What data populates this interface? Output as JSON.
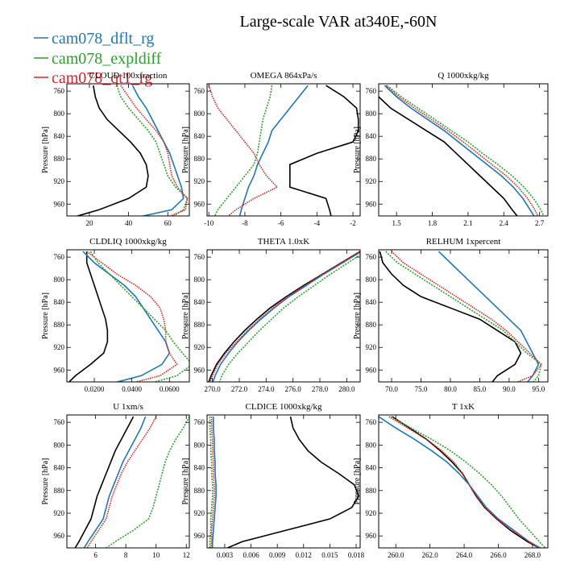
{
  "title": "Large-scale VAR at340E,-60N",
  "chart_data": [
    {
      "type": "line",
      "title": "CLOUD 100xfraction",
      "ylabel": "Pressure [hPa]",
      "y": [
        750,
        770,
        790,
        810,
        830,
        850,
        870,
        890,
        910,
        930,
        950,
        970,
        983
      ],
      "ylim": [
        747,
        981
      ],
      "yreverse": true,
      "yticks": [
        760,
        800,
        840,
        880,
        920,
        960
      ],
      "xlim": [
        8.5,
        71
      ],
      "xticks": [
        20,
        40,
        60
      ],
      "series": [
        {
          "color": "#000000",
          "values": [
            22,
            23,
            25,
            29,
            35,
            41,
            46,
            49,
            50,
            49,
            40,
            25,
            12
          ]
        },
        {
          "name": "cam078_dflt_rg",
          "color": "#1f77b4",
          "values": [
            42,
            45,
            49,
            52,
            55,
            58,
            61,
            63,
            65,
            67,
            68,
            62,
            45
          ]
        },
        {
          "name": "cam078_expldiff",
          "color": "#2ca02c",
          "values": [
            34,
            36,
            40,
            45,
            50,
            54,
            56,
            58,
            60,
            64,
            70,
            68,
            62
          ]
        },
        {
          "name": "cam078_qt1_rg",
          "color": "#d62728",
          "values": [
            36,
            40,
            44,
            49,
            54,
            58,
            60,
            61,
            62,
            65,
            70,
            69,
            60
          ]
        }
      ]
    },
    {
      "type": "line",
      "title": "OMEGA  864xPa/s",
      "ylabel": "Pressure [hPa]",
      "y": [
        750,
        770,
        790,
        810,
        830,
        850,
        870,
        890,
        910,
        930,
        950,
        970,
        983
      ],
      "ylim": [
        747,
        981
      ],
      "yreverse": true,
      "yticks": [
        760,
        800,
        840,
        880,
        920,
        960
      ],
      "xlim": [
        -10.1,
        -1.6
      ],
      "xticks": [
        -10,
        -8,
        -6,
        -4,
        -2
      ],
      "series": [
        {
          "color": "#000000",
          "values": [
            -3.5,
            -2.5,
            -1.8,
            -1.7,
            -1.7,
            -2.0,
            -4.0,
            -5.5,
            -5.5,
            -5.5,
            -3.5,
            -3.3,
            -3.2
          ]
        },
        {
          "color": "#1f77b4",
          "values": [
            -4.5,
            -5.0,
            -5.5,
            -6.0,
            -6.5,
            -6.7,
            -7.0,
            -7.3,
            -7.5,
            -7.8,
            -8.0,
            -8.2,
            -8.3
          ]
        },
        {
          "color": "#2ca02c",
          "values": [
            -6.5,
            -6.6,
            -6.8,
            -7.0,
            -7.1,
            -7.2,
            -7.3,
            -7.5,
            -8.0,
            -8.5,
            -9.0,
            -9.5,
            -9.7
          ]
        },
        {
          "color": "#d62728",
          "values": [
            -10.0,
            -9.8,
            -9.5,
            -9.0,
            -8.5,
            -8.0,
            -7.5,
            -7.2,
            -6.8,
            -6.2,
            -7.5,
            -8.5,
            -9.0
          ]
        }
      ]
    },
    {
      "type": "line",
      "title": "Q  1000xkg/kg",
      "ylabel": "Pressure [hPa]",
      "y": [
        750,
        770,
        790,
        810,
        830,
        850,
        870,
        890,
        910,
        930,
        950,
        970,
        983
      ],
      "ylim": [
        747,
        981
      ],
      "yreverse": true,
      "yticks": [
        760,
        800,
        840,
        880,
        920,
        960
      ],
      "xlim": [
        1.35,
        2.77
      ],
      "xticks": [
        1.5,
        1.8,
        2.1,
        2.4,
        2.7
      ],
      "series": [
        {
          "color": "#000000",
          "values": [
            1.3,
            1.35,
            1.45,
            1.6,
            1.75,
            1.9,
            2.0,
            2.1,
            2.2,
            2.3,
            2.4,
            2.47,
            2.52
          ]
        },
        {
          "color": "#1f77b4",
          "values": [
            1.4,
            1.5,
            1.62,
            1.76,
            1.9,
            2.02,
            2.14,
            2.26,
            2.38,
            2.48,
            2.56,
            2.62,
            2.66
          ]
        },
        {
          "color": "#2ca02c",
          "values": [
            1.42,
            1.54,
            1.68,
            1.82,
            1.96,
            2.1,
            2.22,
            2.35,
            2.47,
            2.57,
            2.65,
            2.71,
            2.74
          ]
        },
        {
          "color": "#d62728",
          "values": [
            1.41,
            1.52,
            1.65,
            1.79,
            1.93,
            2.06,
            2.18,
            2.3,
            2.42,
            2.52,
            2.6,
            2.66,
            2.69
          ]
        }
      ]
    },
    {
      "type": "line",
      "title": "CLDLIQ  1000xkg/kg",
      "ylabel": "Pressure [hPa]",
      "y": [
        750,
        770,
        790,
        810,
        830,
        850,
        870,
        890,
        910,
        930,
        950,
        970,
        983
      ],
      "ylim": [
        747,
        981
      ],
      "yreverse": true,
      "yticks": [
        760,
        800,
        840,
        880,
        920,
        960
      ],
      "xlim": [
        0.0054,
        0.0706
      ],
      "xticks": [
        {
          "value": 0.02,
          "label": "0.0200"
        },
        {
          "value": 0.04,
          "label": "0.0400"
        },
        {
          "value": 0.06,
          "label": "0.0600"
        }
      ],
      "series": [
        {
          "color": "#000000",
          "values": [
            0.016,
            0.016,
            0.018,
            0.02,
            0.022,
            0.024,
            0.026,
            0.027,
            0.027,
            0.025,
            0.018,
            0.01,
            0.006
          ]
        },
        {
          "color": "#1f77b4",
          "values": [
            0.014,
            0.02,
            0.028,
            0.036,
            0.042,
            0.046,
            0.05,
            0.054,
            0.058,
            0.06,
            0.056,
            0.045,
            0.03
          ]
        },
        {
          "color": "#2ca02c",
          "values": [
            0.018,
            0.022,
            0.028,
            0.034,
            0.04,
            0.046,
            0.052,
            0.058,
            0.062,
            0.067,
            0.072,
            0.064,
            0.05
          ]
        },
        {
          "color": "#d62728",
          "values": [
            0.016,
            0.024,
            0.032,
            0.042,
            0.05,
            0.055,
            0.057,
            0.058,
            0.058,
            0.06,
            0.064,
            0.055,
            0.04
          ]
        }
      ]
    },
    {
      "type": "line",
      "title": "THETA  1.0xK",
      "ylabel": "Pressure [hPa]",
      "y": [
        750,
        770,
        790,
        810,
        830,
        850,
        870,
        890,
        910,
        930,
        950,
        970,
        983
      ],
      "ylim": [
        747,
        981
      ],
      "yreverse": true,
      "yticks": [
        760,
        800,
        840,
        880,
        920,
        960
      ],
      "xlim": [
        269.6,
        281.0
      ],
      "xticks": [
        {
          "value": 270,
          "label": "270.0"
        },
        {
          "value": 272,
          "label": "272.0"
        },
        {
          "value": 274,
          "label": "274.0"
        },
        {
          "value": 276,
          "label": "276.0"
        },
        {
          "value": 278,
          "label": "278.0"
        },
        {
          "value": 280,
          "label": "280.0"
        }
      ],
      "series": [
        {
          "color": "#000000",
          "values": [
            281.0,
            279.6,
            278.2,
            276.8,
            275.5,
            274.3,
            273.3,
            272.4,
            271.6,
            270.9,
            270.3,
            269.9,
            269.7
          ]
        },
        {
          "color": "#1f77b4",
          "values": [
            281.1,
            279.7,
            278.3,
            277.0,
            275.7,
            274.6,
            273.6,
            272.7,
            271.9,
            271.2,
            270.6,
            270.2,
            270.0
          ]
        },
        {
          "color": "#2ca02c",
          "values": [
            281.4,
            280.1,
            278.8,
            277.6,
            276.4,
            275.3,
            274.4,
            273.5,
            272.7,
            271.9,
            271.2,
            270.7,
            270.5
          ]
        },
        {
          "color": "#d62728",
          "values": [
            281.0,
            279.6,
            278.2,
            276.9,
            275.6,
            274.5,
            273.5,
            272.6,
            271.8,
            271.0,
            270.4,
            270.0,
            269.8
          ]
        }
      ]
    },
    {
      "type": "line",
      "title": "RELHUM  1xpercent",
      "ylabel": "Pressure [hPa]",
      "y": [
        750,
        770,
        790,
        810,
        830,
        850,
        870,
        890,
        910,
        930,
        950,
        970,
        983
      ],
      "ylim": [
        747,
        981
      ],
      "yreverse": true,
      "yticks": [
        760,
        800,
        840,
        880,
        920,
        960
      ],
      "xlim": [
        67.8,
        96.6
      ],
      "xticks": [
        {
          "value": 70,
          "label": "70.0"
        },
        {
          "value": 75,
          "label": "75.0"
        },
        {
          "value": 80,
          "label": "80.0"
        },
        {
          "value": 85,
          "label": "85.0"
        },
        {
          "value": 90,
          "label": "90.0"
        },
        {
          "value": 95,
          "label": "95.0"
        }
      ],
      "series": [
        {
          "color": "#000000",
          "values": [
            68,
            68.5,
            70,
            72,
            75,
            80,
            85,
            88,
            91,
            92,
            91,
            88,
            87
          ]
        },
        {
          "color": "#1f77b4",
          "values": [
            78,
            80,
            82,
            84,
            86,
            88,
            90,
            92,
            93,
            94,
            95,
            94,
            93
          ]
        },
        {
          "color": "#2ca02c",
          "values": [
            69,
            71,
            74,
            77,
            80,
            83,
            86,
            89,
            91,
            93,
            95.5,
            95,
            94
          ]
        },
        {
          "color": "#d62728",
          "values": [
            70,
            72,
            75,
            78,
            81,
            84,
            87,
            89.5,
            91.5,
            93.5,
            95.5,
            94,
            91
          ]
        }
      ]
    },
    {
      "type": "line",
      "title": "U  1xm/s",
      "ylabel": "Pressure [hPa]",
      "y": [
        750,
        770,
        790,
        810,
        830,
        850,
        870,
        890,
        910,
        930,
        950,
        970,
        983
      ],
      "ylim": [
        747,
        981
      ],
      "yreverse": true,
      "yticks": [
        760,
        800,
        840,
        880,
        920,
        960
      ],
      "xlim": [
        4.1,
        12.2
      ],
      "xticks": [
        6,
        8,
        10,
        12
      ],
      "series": [
        {
          "color": "#000000",
          "values": [
            8.5,
            8.1,
            7.7,
            7.3,
            7.0,
            6.7,
            6.4,
            6.1,
            5.9,
            5.7,
            5.3,
            4.9,
            4.6
          ]
        },
        {
          "color": "#1f77b4",
          "values": [
            9.3,
            9.0,
            8.6,
            8.2,
            7.8,
            7.5,
            7.2,
            6.9,
            6.7,
            6.5,
            6.0,
            5.5,
            5.2
          ]
        },
        {
          "color": "#2ca02c",
          "values": [
            12.2,
            11.8,
            11.3,
            10.9,
            10.6,
            10.4,
            10.2,
            10.0,
            9.8,
            9.5,
            8.5,
            7.3,
            6.6
          ]
        },
        {
          "color": "#d62728",
          "values": [
            10.0,
            9.6,
            9.1,
            8.6,
            8.1,
            7.7,
            7.4,
            7.1,
            6.9,
            6.7,
            6.2,
            5.7,
            5.4
          ]
        }
      ]
    },
    {
      "type": "line",
      "title": "CLDICE  1000xkg/kg",
      "ylabel": "Pressure [hPa]",
      "y": [
        750,
        770,
        790,
        810,
        830,
        850,
        870,
        890,
        910,
        930,
        950,
        970,
        983
      ],
      "ylim": [
        747,
        981
      ],
      "yreverse": true,
      "yticks": [
        760,
        800,
        840,
        880,
        920,
        960
      ],
      "xlim": [
        0.00098,
        0.01846
      ],
      "xticks": [
        0.003,
        0.006,
        0.009,
        0.012,
        0.015,
        0.018
      ],
      "series": [
        {
          "color": "#000000",
          "values": [
            0.0105,
            0.0108,
            0.0115,
            0.0125,
            0.014,
            0.016,
            0.0178,
            0.0183,
            0.0175,
            0.015,
            0.01,
            0.005,
            0.003
          ]
        },
        {
          "color": "#1f77b4",
          "values": [
            0.0017,
            0.0017,
            0.0018,
            0.0018,
            0.0019,
            0.0019,
            0.002,
            0.002,
            0.0019,
            0.0018,
            0.0017,
            0.0016,
            0.0016
          ]
        },
        {
          "color": "#2ca02c",
          "values": [
            0.0013,
            0.0013,
            0.0014,
            0.0014,
            0.0015,
            0.0015,
            0.0016,
            0.0016,
            0.0015,
            0.0014,
            0.0014,
            0.0013,
            0.0013
          ]
        },
        {
          "color": "#d62728",
          "values": [
            0.0015,
            0.0015,
            0.0016,
            0.0016,
            0.0017,
            0.0017,
            0.0018,
            0.0018,
            0.0017,
            0.0016,
            0.0015,
            0.0015,
            0.0014
          ]
        }
      ]
    },
    {
      "type": "line",
      "title": "T  1xK",
      "ylabel": "Pressure [hPa]",
      "y": [
        750,
        770,
        790,
        810,
        830,
        850,
        870,
        890,
        910,
        930,
        950,
        970,
        983
      ],
      "ylim": [
        747,
        981
      ],
      "yreverse": true,
      "yticks": [
        760,
        800,
        840,
        880,
        920,
        960
      ],
      "xlim": [
        259.0,
        268.9
      ],
      "xticks": [
        {
          "value": 260,
          "label": "260.0"
        },
        {
          "value": 262,
          "label": "262.0"
        },
        {
          "value": 264,
          "label": "264.0"
        },
        {
          "value": 266,
          "label": "266.0"
        },
        {
          "value": 268,
          "label": "268.0"
        }
      ],
      "series": [
        {
          "color": "#000000",
          "values": [
            259.8,
            260.8,
            261.8,
            262.6,
            263.3,
            263.9,
            264.3,
            264.7,
            265.2,
            265.9,
            266.7,
            267.7,
            268.5
          ]
        },
        {
          "color": "#1f77b4",
          "values": [
            259.0,
            260.0,
            261.1,
            262.1,
            263.0,
            263.7,
            264.3,
            264.8,
            265.3,
            266.0,
            266.9,
            267.8,
            268.5
          ]
        },
        {
          "color": "#2ca02c",
          "values": [
            259.7,
            260.9,
            262.1,
            263.2,
            264.1,
            264.9,
            265.6,
            266.2,
            266.7,
            267.2,
            267.8,
            268.4,
            268.8
          ]
        },
        {
          "color": "#d62728",
          "values": [
            259.6,
            260.7,
            261.8,
            262.7,
            263.4,
            263.9,
            264.3,
            264.7,
            265.2,
            265.9,
            266.8,
            267.8,
            268.6
          ]
        }
      ]
    }
  ]
}
